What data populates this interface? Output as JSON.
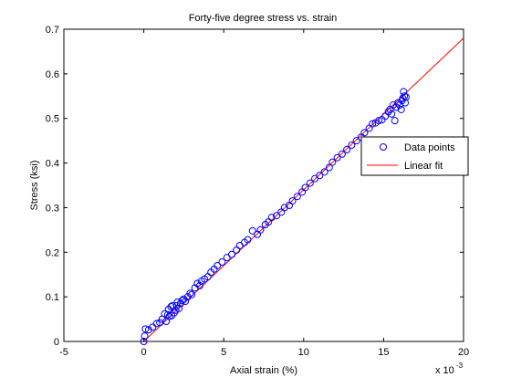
{
  "chart_data": {
    "type": "scatter",
    "title": "Forty-five degree stress vs. strain",
    "xlabel": "Axial strain (%)",
    "ylabel": "Stress (ksi)",
    "x_multiplier_label": "x 10",
    "x_multiplier_exponent": "-3",
    "xlim": [
      -5,
      20
    ],
    "ylim": [
      0,
      0.7
    ],
    "xticks": [
      -5,
      0,
      5,
      10,
      15,
      20
    ],
    "yticks": [
      0,
      0.1,
      0.2,
      0.3,
      0.4,
      0.5,
      0.6,
      0.7
    ],
    "xtick_labels": [
      "-5",
      "0",
      "5",
      "10",
      "15",
      "20"
    ],
    "ytick_labels": [
      "0",
      "0.1",
      "0.2",
      "0.3",
      "0.4",
      "0.5",
      "0.6",
      "0.7"
    ],
    "grid": false,
    "legend_position": "right",
    "series": [
      {
        "name": "Data points",
        "kind": "scatter",
        "color": "#0000ff",
        "marker": "circle-open",
        "x": [
          0.0,
          0.05,
          0.1,
          0.3,
          0.55,
          0.8,
          1.0,
          1.15,
          1.3,
          1.4,
          1.5,
          1.55,
          1.6,
          1.7,
          1.75,
          1.8,
          1.9,
          2.0,
          2.05,
          2.1,
          2.2,
          2.3,
          2.4,
          2.5,
          2.6,
          2.75,
          2.9,
          3.0,
          3.2,
          3.35,
          3.5,
          3.6,
          3.8,
          4.0,
          4.2,
          4.4,
          4.6,
          4.9,
          5.2,
          5.5,
          5.8,
          6.0,
          6.3,
          6.5,
          6.8,
          7.1,
          7.3,
          7.6,
          7.8,
          8.0,
          8.3,
          8.6,
          8.8,
          9.1,
          9.3,
          9.6,
          9.9,
          10.1,
          10.4,
          10.7,
          11.0,
          11.3,
          11.6,
          11.8,
          12.1,
          12.4,
          12.7,
          13.0,
          13.3,
          13.6,
          13.8,
          14.1,
          14.3,
          14.5,
          14.7,
          14.9,
          15.1,
          15.3,
          15.4,
          15.5,
          15.6,
          15.7,
          15.8,
          15.9,
          16.0,
          16.1,
          16.15,
          16.2,
          16.25,
          16.3,
          16.35,
          16.4
        ],
        "y": [
          0.0,
          0.012,
          0.028,
          0.026,
          0.032,
          0.04,
          0.042,
          0.05,
          0.062,
          0.045,
          0.06,
          0.072,
          0.056,
          0.078,
          0.058,
          0.08,
          0.064,
          0.07,
          0.08,
          0.088,
          0.074,
          0.085,
          0.092,
          0.095,
          0.09,
          0.1,
          0.108,
          0.105,
          0.12,
          0.13,
          0.125,
          0.135,
          0.14,
          0.145,
          0.155,
          0.162,
          0.17,
          0.178,
          0.188,
          0.195,
          0.205,
          0.215,
          0.222,
          0.228,
          0.248,
          0.24,
          0.25,
          0.262,
          0.268,
          0.278,
          0.282,
          0.29,
          0.3,
          0.305,
          0.315,
          0.325,
          0.335,
          0.345,
          0.355,
          0.365,
          0.372,
          0.38,
          0.39,
          0.402,
          0.412,
          0.42,
          0.43,
          0.44,
          0.45,
          0.458,
          0.468,
          0.478,
          0.488,
          0.49,
          0.495,
          0.497,
          0.505,
          0.515,
          0.52,
          0.51,
          0.53,
          0.495,
          0.525,
          0.535,
          0.53,
          0.52,
          0.54,
          0.545,
          0.56,
          0.55,
          0.535,
          0.548
        ]
      },
      {
        "name": "Linear fit",
        "kind": "line",
        "color": "#ff0000",
        "x": [
          0,
          20
        ],
        "y": [
          0.0,
          0.68
        ]
      }
    ]
  }
}
